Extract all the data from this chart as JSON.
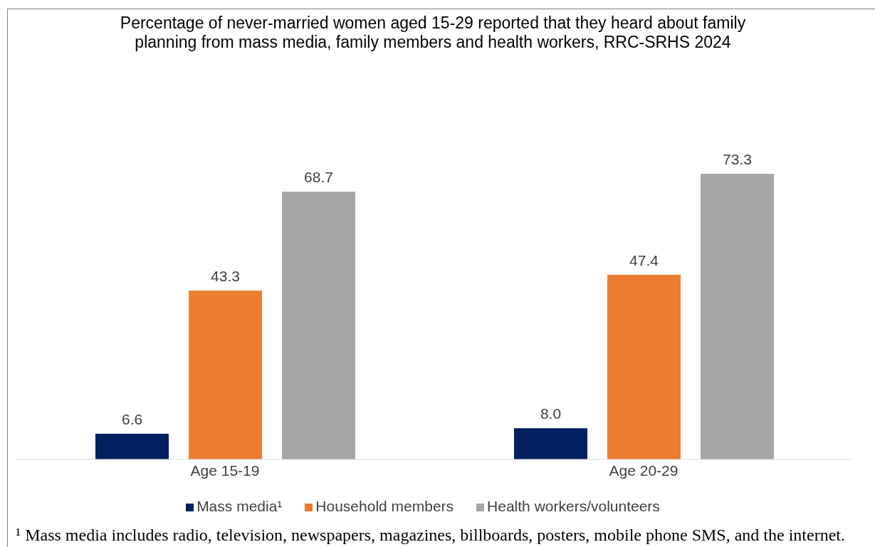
{
  "chart_data": {
    "type": "bar",
    "title": "Percentage of never-married women aged 15-29 reported that they heard about family planning from mass media, family members and health workers, RRC-SRHS 2024",
    "categories": [
      "Age 15-19",
      "Age 20-29"
    ],
    "series": [
      {
        "name": "Mass media¹",
        "color": "#002060",
        "values": [
          6.6,
          8.0
        ],
        "value_labels": [
          "6.6",
          "8.0"
        ]
      },
      {
        "name": "Household members",
        "color": "#ed7d31",
        "values": [
          43.3,
          47.4
        ],
        "value_labels": [
          "43.3",
          "47.4"
        ]
      },
      {
        "name": "Health workers/volunteers",
        "color": "#a5a5a5",
        "values": [
          68.7,
          73.3
        ],
        "value_labels": [
          "68.7",
          "73.3"
        ]
      }
    ],
    "legend": "bottom",
    "annotations": [
      "¹ Mass media includes radio, television, newspapers, magazines, billboards, posters, mobile phone SMS, and the internet."
    ]
  }
}
